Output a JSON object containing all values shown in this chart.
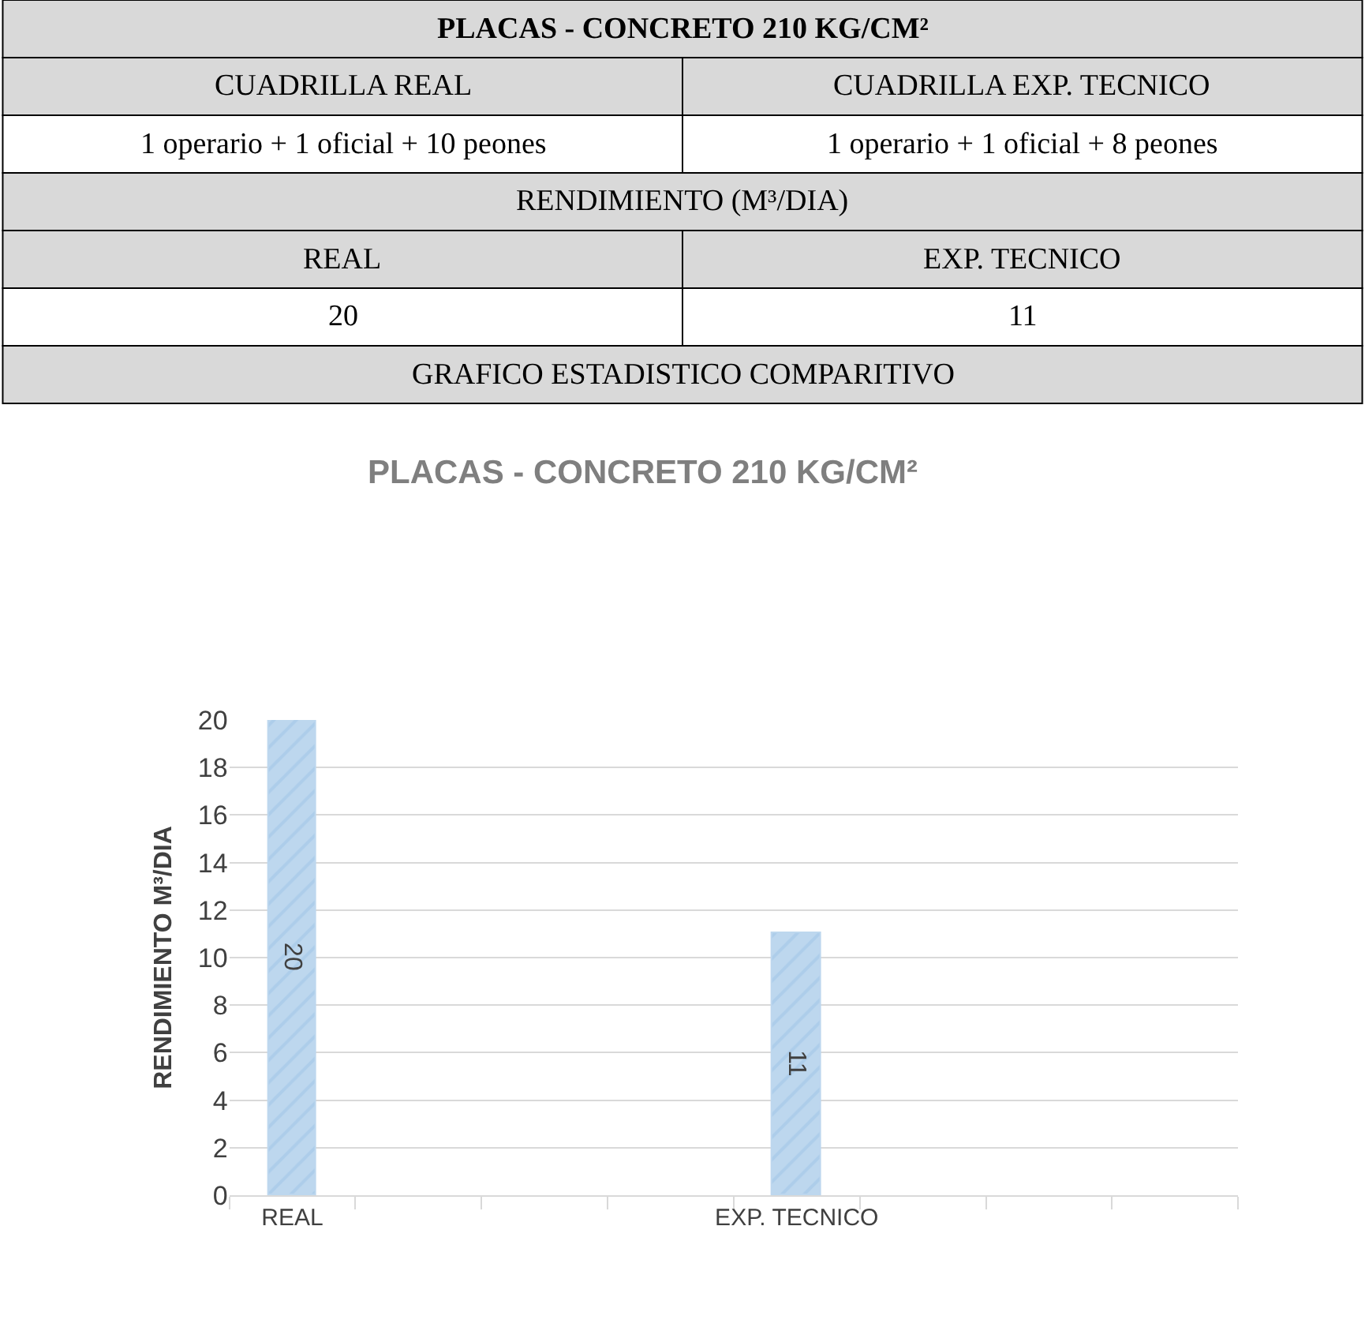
{
  "chart_data": [
    {
      "type": "other",
      "title": "PLACAS - CONCRETO 210 KG/CM²",
      "annotations": [
        "CUADRILLA REAL",
        "CUADRILLA EXP. TECNICO",
        "1 operario + 1 oficial + 10 peones",
        "1 operario + 1 oficial + 8 peones",
        "RENDIMIENTO (M³/DIA)",
        "REAL",
        "EXP. TECNICO",
        "20",
        "11",
        "GRAFICO ESTADISTICO COMPARITIVO"
      ]
    },
    {
      "type": "bar",
      "title": "PLACAS - CONCRETO 210 KG/CM²",
      "ylabel": "RENDIMIENTO M³/DIA",
      "categories": [
        "REAL",
        null,
        null,
        null,
        "EXP. TECNICO",
        null,
        null,
        null
      ],
      "values": [
        20,
        null,
        null,
        null,
        11,
        null,
        null,
        null
      ],
      "color": "#bdd7ee",
      "ylim": [
        0,
        20
      ],
      "yticks": [
        0,
        2,
        4,
        6,
        8,
        10,
        12,
        14,
        16,
        18,
        20
      ],
      "grid": "y",
      "data_labels": true
    }
  ]
}
